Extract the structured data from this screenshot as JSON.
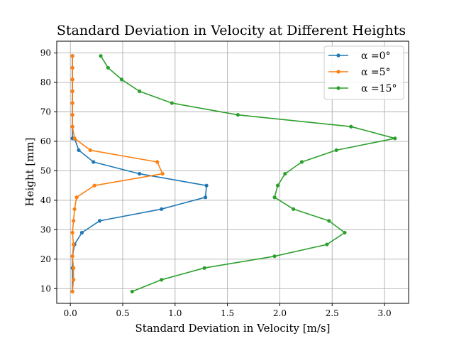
{
  "chart_data": {
    "type": "line",
    "title": "Standard Deviation in Velocity at Different Heights",
    "xlabel": "Standard Deviation in Velocity [m/s]",
    "ylabel": "Height [mm]",
    "xlim": [
      -0.13,
      3.23
    ],
    "ylim": [
      5,
      94
    ],
    "xticks": [
      "0.0",
      "0.5",
      "1.0",
      "1.5",
      "2.0",
      "2.5",
      "3.0"
    ],
    "yticks": [
      "10",
      "20",
      "30",
      "40",
      "50",
      "60",
      "70",
      "80",
      "90"
    ],
    "grid": true,
    "legend_position": "top-right",
    "series": [
      {
        "name": "α =0°",
        "color": "#1f77b4",
        "x": [
          0.02,
          0.02,
          0.02,
          0.02,
          0.02,
          0.02,
          0.02,
          0.02,
          0.02,
          0.03,
          0.04,
          0.08,
          0.22,
          0.66,
          1.3,
          1.29,
          0.87,
          0.28,
          0.11,
          0.04,
          0.02,
          0.02,
          0.02
        ],
        "y": [
          89,
          85,
          81,
          77,
          73,
          69,
          65,
          61,
          61,
          61,
          61,
          57,
          53,
          49,
          45,
          41,
          37,
          33,
          29,
          25,
          21,
          17,
          9
        ]
      },
      {
        "name": "α =5°",
        "color": "#ff7f0e",
        "x": [
          0.02,
          0.02,
          0.02,
          0.02,
          0.02,
          0.02,
          0.02,
          0.04,
          0.19,
          0.83,
          0.88,
          0.23,
          0.06,
          0.04,
          0.03,
          0.02,
          0.03,
          0.02,
          0.03,
          0.03,
          0.02
        ],
        "y": [
          89,
          85,
          81,
          77,
          73,
          69,
          65,
          61,
          57,
          53,
          49,
          45,
          41,
          37,
          33,
          29,
          25,
          21,
          17,
          13,
          9
        ]
      },
      {
        "name": "α =15°",
        "color": "#2ca02c",
        "x": [
          0.29,
          0.36,
          0.49,
          0.66,
          0.97,
          1.6,
          2.68,
          3.1,
          2.54,
          2.21,
          2.05,
          1.98,
          1.95,
          2.13,
          2.47,
          2.62,
          2.45,
          1.95,
          1.28,
          0.87,
          0.59
        ],
        "y": [
          89,
          85,
          81,
          77,
          73,
          69,
          65,
          61,
          57,
          53,
          49,
          45,
          41,
          37,
          33,
          29,
          25,
          21,
          17,
          13,
          9
        ]
      }
    ]
  }
}
